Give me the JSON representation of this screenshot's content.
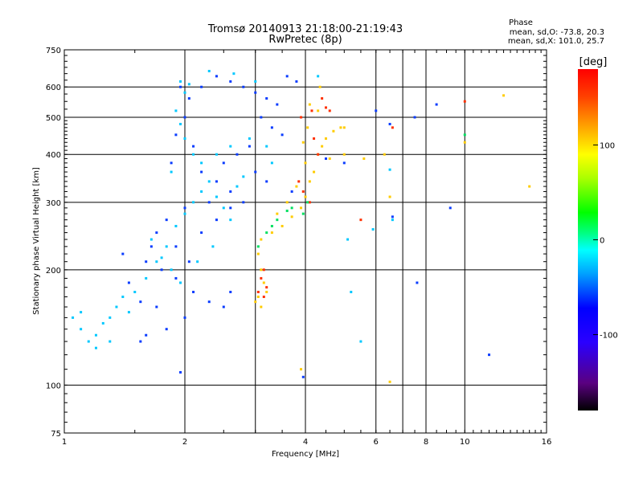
{
  "chart_data": {
    "type": "scatter",
    "title": "Tromsø 20140913 21:18:00-21:19:43",
    "subtitle": "RwPretec (8p)",
    "xlabel": "Frequency [MHz]",
    "ylabel": "Stationary phase Virtual Height [km]",
    "x_scale": "log",
    "y_scale": "log",
    "xlim": [
      1,
      16
    ],
    "ylim": [
      75,
      750
    ],
    "x_ticks": [
      "1",
      "2",
      "4",
      "6",
      "8",
      "10",
      "16"
    ],
    "x_tick_values": [
      1,
      2,
      4,
      6,
      8,
      10,
      16
    ],
    "x_grid_values": [
      1,
      2,
      3,
      4,
      6,
      7,
      8,
      10,
      16
    ],
    "y_ticks": [
      "75",
      "100",
      "200",
      "300",
      "400",
      "500",
      "600",
      "750"
    ],
    "y_tick_values": [
      75,
      100,
      200,
      300,
      400,
      500,
      600,
      750
    ],
    "grid": true,
    "phase_box": {
      "title": "Phase",
      "line1": "mean, sd,O: -73.8, 20.3",
      "line2": "mean, sd,X: 101.0, 25.7"
    },
    "colorbar": {
      "label": "[deg]",
      "range": [
        -180,
        180
      ],
      "ticks": [
        "100",
        "0",
        "-100"
      ],
      "tick_values": [
        100,
        0,
        -100
      ],
      "colors": [
        "#000000",
        "#5a0080",
        "#2a00ff",
        "#0000ff",
        "#00a0ff",
        "#00ffff",
        "#00ff80",
        "#00ff00",
        "#aaff00",
        "#ffff00",
        "#ffa500",
        "#ff4000",
        "#ff0000"
      ]
    },
    "series": [
      {
        "name": "",
        "color": "#0a3cff",
        "points": [
          [
            1.95,
            600
          ],
          [
            2.05,
            560
          ],
          [
            2.0,
            500
          ],
          [
            1.9,
            450
          ],
          [
            2.1,
            420
          ],
          [
            1.85,
            380
          ],
          [
            2.2,
            360
          ],
          [
            2.4,
            340
          ],
          [
            2.6,
            320
          ],
          [
            2.3,
            300
          ],
          [
            2.0,
            290
          ],
          [
            1.8,
            270
          ],
          [
            1.7,
            250
          ],
          [
            1.65,
            230
          ],
          [
            1.6,
            210
          ],
          [
            1.75,
            200
          ],
          [
            1.9,
            190
          ],
          [
            2.1,
            175
          ],
          [
            2.3,
            165
          ],
          [
            2.5,
            160
          ],
          [
            2.6,
            175
          ],
          [
            2.0,
            150
          ],
          [
            1.8,
            140
          ],
          [
            1.6,
            135
          ],
          [
            1.55,
            130
          ],
          [
            1.7,
            160
          ],
          [
            2.8,
            600
          ],
          [
            3.0,
            580
          ],
          [
            3.2,
            560
          ],
          [
            3.4,
            540
          ],
          [
            3.1,
            500
          ],
          [
            3.3,
            470
          ],
          [
            3.5,
            450
          ],
          [
            2.9,
            420
          ],
          [
            2.7,
            400
          ],
          [
            2.5,
            380
          ],
          [
            3.0,
            360
          ],
          [
            3.2,
            340
          ],
          [
            2.8,
            300
          ],
          [
            2.6,
            290
          ],
          [
            2.4,
            270
          ],
          [
            2.2,
            250
          ],
          [
            3.6,
            640
          ],
          [
            3.8,
            620
          ],
          [
            2.4,
            640
          ],
          [
            2.6,
            620
          ],
          [
            2.2,
            600
          ],
          [
            1.9,
            230
          ],
          [
            2.05,
            210
          ],
          [
            1.55,
            165
          ],
          [
            1.45,
            185
          ],
          [
            1.4,
            220
          ],
          [
            3.7,
            320
          ],
          [
            4.5,
            390
          ],
          [
            5.0,
            380
          ],
          [
            6.0,
            520
          ],
          [
            6.5,
            480
          ],
          [
            8.5,
            540
          ],
          [
            7.5,
            500
          ],
          [
            9.2,
            290
          ],
          [
            6.6,
            275
          ],
          [
            11.5,
            120
          ],
          [
            7.6,
            185
          ],
          [
            3.95,
            105
          ],
          [
            1.95,
            108
          ]
        ]
      },
      {
        "name": "",
        "color": "#00c8ff",
        "points": [
          [
            1.05,
            150
          ],
          [
            1.1,
            140
          ],
          [
            1.15,
            130
          ],
          [
            1.2,
            135
          ],
          [
            1.25,
            145
          ],
          [
            1.3,
            150
          ],
          [
            1.35,
            160
          ],
          [
            1.4,
            170
          ],
          [
            1.3,
            130
          ],
          [
            1.2,
            125
          ],
          [
            1.1,
            155
          ],
          [
            1.45,
            155
          ],
          [
            1.5,
            175
          ],
          [
            1.6,
            190
          ],
          [
            1.7,
            210
          ],
          [
            1.8,
            230
          ],
          [
            1.9,
            260
          ],
          [
            2.0,
            280
          ],
          [
            2.1,
            300
          ],
          [
            2.2,
            320
          ],
          [
            2.3,
            340
          ],
          [
            2.4,
            310
          ],
          [
            2.5,
            290
          ],
          [
            2.6,
            270
          ],
          [
            1.95,
            620
          ],
          [
            2.05,
            610
          ],
          [
            2.0,
            580
          ],
          [
            1.9,
            520
          ],
          [
            1.95,
            480
          ],
          [
            2.0,
            440
          ],
          [
            2.1,
            400
          ],
          [
            1.85,
            360
          ],
          [
            2.2,
            380
          ],
          [
            2.4,
            400
          ],
          [
            2.6,
            420
          ],
          [
            2.9,
            440
          ],
          [
            3.2,
            420
          ],
          [
            3.3,
            380
          ],
          [
            2.8,
            350
          ],
          [
            2.7,
            330
          ],
          [
            1.65,
            240
          ],
          [
            1.75,
            215
          ],
          [
            1.85,
            200
          ],
          [
            1.95,
            185
          ],
          [
            2.15,
            210
          ],
          [
            2.35,
            230
          ],
          [
            6.5,
            365
          ],
          [
            6.6,
            270
          ],
          [
            5.9,
            255
          ],
          [
            5.1,
            240
          ],
          [
            3.0,
            620
          ],
          [
            2.3,
            660
          ],
          [
            2.65,
            650
          ],
          [
            4.3,
            640
          ],
          [
            5.2,
            175
          ],
          [
            5.5,
            130
          ]
        ]
      },
      {
        "name": "",
        "color": "#ffcc00",
        "points": [
          [
            3.3,
            250
          ],
          [
            3.5,
            260
          ],
          [
            3.7,
            275
          ],
          [
            3.9,
            290
          ],
          [
            4.0,
            310
          ],
          [
            4.1,
            340
          ],
          [
            4.2,
            360
          ],
          [
            4.3,
            400
          ],
          [
            4.4,
            420
          ],
          [
            4.5,
            440
          ],
          [
            3.6,
            300
          ],
          [
            3.4,
            280
          ],
          [
            3.8,
            330
          ],
          [
            4.0,
            380
          ],
          [
            3.1,
            240
          ],
          [
            3.05,
            220
          ],
          [
            3.1,
            200
          ],
          [
            3.15,
            185
          ],
          [
            3.05,
            170
          ],
          [
            3.1,
            160
          ],
          [
            3.2,
            175
          ],
          [
            3.0,
            165
          ],
          [
            4.6,
            390
          ],
          [
            4.9,
            470
          ],
          [
            5.6,
            390
          ],
          [
            6.3,
            400
          ],
          [
            4.1,
            540
          ],
          [
            4.3,
            520
          ],
          [
            4.05,
            470
          ],
          [
            3.95,
            430
          ],
          [
            4.7,
            460
          ],
          [
            5.0,
            470
          ],
          [
            6.5,
            310
          ],
          [
            10.0,
            430
          ],
          [
            12.5,
            570
          ],
          [
            14.5,
            330
          ],
          [
            3.9,
            110
          ],
          [
            6.5,
            102
          ],
          [
            5.0,
            400
          ],
          [
            4.35,
            600
          ]
        ]
      },
      {
        "name": "",
        "color": "#ff3000",
        "points": [
          [
            3.15,
            200
          ],
          [
            3.1,
            190
          ],
          [
            3.2,
            180
          ],
          [
            3.05,
            175
          ],
          [
            3.15,
            170
          ],
          [
            3.85,
            340
          ],
          [
            3.95,
            320
          ],
          [
            4.1,
            300
          ],
          [
            4.3,
            400
          ],
          [
            4.2,
            440
          ],
          [
            4.5,
            530
          ],
          [
            4.6,
            520
          ],
          [
            4.4,
            560
          ],
          [
            10.0,
            550
          ],
          [
            6.6,
            470
          ],
          [
            5.5,
            270
          ],
          [
            4.15,
            520
          ],
          [
            3.9,
            500
          ]
        ]
      },
      {
        "name": "",
        "color": "#00e060",
        "points": [
          [
            3.3,
            260
          ],
          [
            3.4,
            270
          ],
          [
            3.6,
            285
          ],
          [
            3.2,
            250
          ],
          [
            3.05,
            230
          ],
          [
            3.95,
            280
          ],
          [
            4.05,
            300
          ],
          [
            3.7,
            290
          ],
          [
            10.0,
            450
          ]
        ]
      }
    ]
  }
}
